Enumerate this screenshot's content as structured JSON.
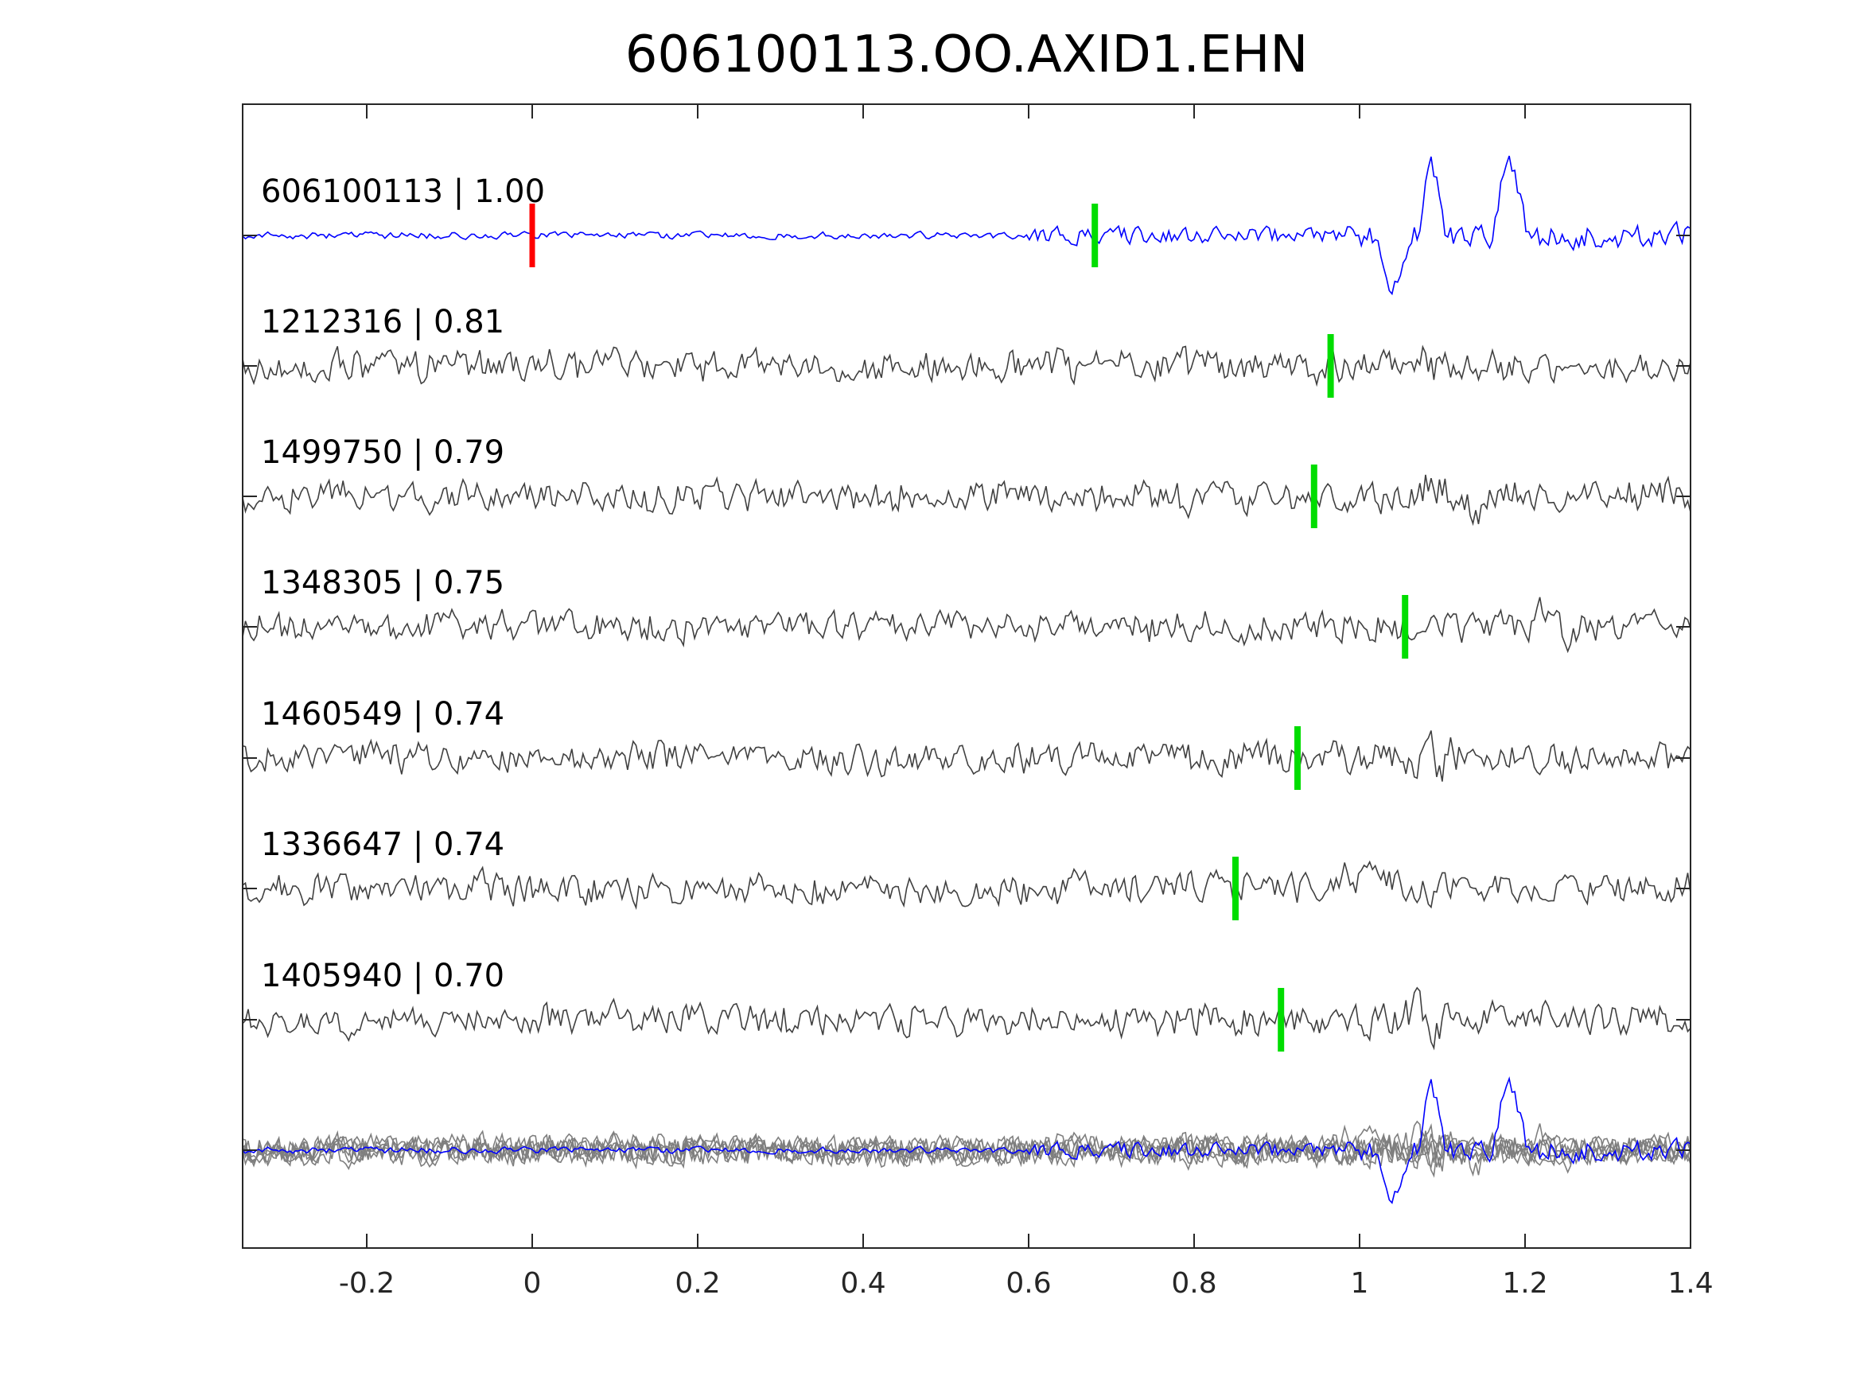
{
  "chart_data": {
    "type": "line",
    "title": "606100113.OO.AXID1.EHN",
    "xlabel": "",
    "ylabel": "",
    "xlim": [
      -0.35,
      1.4
    ],
    "x_ticks": [
      "-0.2",
      "0",
      "0.2",
      "0.4",
      "0.6",
      "0.8",
      "1",
      "1.2",
      "1.4"
    ],
    "x_tick_values": [
      -0.2,
      0,
      0.2,
      0.4,
      0.6,
      0.8,
      1,
      1.2,
      1.4
    ],
    "grid": false,
    "legend": "none",
    "colors": {
      "reference_trace": "#0000ff",
      "match_trace": "#404040",
      "stack_trace": "#7f7f7f",
      "pick_marker": "#00dd00",
      "origin_marker": "#ff0000",
      "axes": "#262626"
    },
    "traces": [
      {
        "label": "606100113 | 1.00",
        "id": "606100113",
        "correlation": 1.0,
        "pick_time": 0.68,
        "origin_marker_time": 0.0,
        "reference": true
      },
      {
        "label": "1212316 | 0.81",
        "id": "1212316",
        "correlation": 0.81,
        "pick_time": 0.965
      },
      {
        "label": "1499750 | 0.79",
        "id": "1499750",
        "correlation": 0.79,
        "pick_time": 0.945
      },
      {
        "label": "1348305 | 0.75",
        "id": "1348305",
        "correlation": 0.75,
        "pick_time": 1.055
      },
      {
        "label": "1460549 | 0.74",
        "id": "1460549",
        "correlation": 0.74,
        "pick_time": 0.925
      },
      {
        "label": "1336647 | 0.74",
        "id": "1336647",
        "correlation": 0.74,
        "pick_time": 0.85
      },
      {
        "label": "1405940 | 0.70",
        "id": "1405940",
        "correlation": 0.7,
        "pick_time": 0.905
      }
    ],
    "stacked_overlay": true
  }
}
